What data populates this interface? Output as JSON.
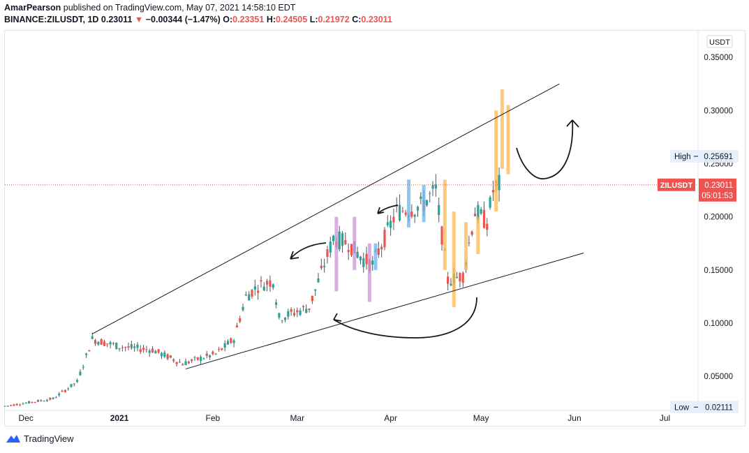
{
  "header": {
    "author": "AmarPearson",
    "published_text": "published on TradingView.com, May 07, 2021 14:58:10 EDT",
    "symbol": "BINANCE:ZILUSDT, 1D",
    "last": "0.23011",
    "change_arrow": "▼",
    "change": "−0.00344 (−1.47%)",
    "o_label": "O:",
    "o": "0.23351",
    "h_label": "H:",
    "h": "0.24505",
    "l_label": "L:",
    "l": "0.21972",
    "c_label": "C:",
    "c": "0.23011"
  },
  "footer": {
    "brand": "TradingView"
  },
  "colors": {
    "up": "#26a69a",
    "down": "#ef5350",
    "purple": "#ce93d8",
    "blue": "#64b5f6",
    "orange": "#ffb74d",
    "price_line": "#ef5350"
  },
  "chart_data": {
    "type": "candlestick",
    "currency_label": "USDT",
    "y_scale": "linear",
    "ylim": [
      0.018,
      0.375
    ],
    "yticks": [
      {
        "v": 0.35,
        "label": "0.35000"
      },
      {
        "v": 0.3,
        "label": "0.30000"
      },
      {
        "v": 0.25,
        "label": "0.25000"
      },
      {
        "v": 0.2,
        "label": "0.20000"
      },
      {
        "v": 0.15,
        "label": "0.15000"
      },
      {
        "v": 0.1,
        "label": "0.10000"
      },
      {
        "v": 0.05,
        "label": "0.05000"
      }
    ],
    "xticks": [
      {
        "label": "Dec",
        "date": "2020-12-01"
      },
      {
        "label": "2021",
        "date": "2021-01-01",
        "bold": true
      },
      {
        "label": "Feb",
        "date": "2021-02-01"
      },
      {
        "label": "Mar",
        "date": "2021-03-01"
      },
      {
        "label": "Apr",
        "date": "2021-04-01"
      },
      {
        "label": "May",
        "date": "2021-05-01"
      },
      {
        "label": "Jun",
        "date": "2021-06-01"
      },
      {
        "label": "Jul",
        "date": "2021-07-01"
      }
    ],
    "xlim_dates": [
      "2020-11-24",
      "2021-07-12"
    ],
    "high_marker": {
      "label": "High",
      "value": 0.25691,
      "text": "0.25691"
    },
    "low_marker": {
      "label": "Low",
      "value": 0.02111,
      "text": "0.02111"
    },
    "last_price": {
      "symbol": "ZILUSDT",
      "value": 0.23011,
      "text": "0.23011",
      "countdown": "05:01:53"
    },
    "trendlines": [
      {
        "from": {
          "date": "2020-12-23",
          "value": 0.09
        },
        "to": {
          "date": "2021-05-27",
          "value": 0.325
        }
      },
      {
        "from": {
          "date": "2021-01-23",
          "value": 0.057
        },
        "to": {
          "date": "2021-06-04",
          "value": 0.166
        }
      }
    ],
    "anchor_points": [
      {
        "date": "2020-11-24",
        "value": 0.022
      },
      {
        "date": "2020-12-01",
        "value": 0.025
      },
      {
        "date": "2020-12-10",
        "value": 0.029
      },
      {
        "date": "2020-12-18",
        "value": 0.045
      },
      {
        "date": "2020-12-23",
        "value": 0.085
      },
      {
        "date": "2021-01-01",
        "value": 0.078
      },
      {
        "date": "2021-01-12",
        "value": 0.075
      },
      {
        "date": "2021-01-22",
        "value": 0.062
      },
      {
        "date": "2021-02-02",
        "value": 0.071
      },
      {
        "date": "2021-02-08",
        "value": 0.085
      },
      {
        "date": "2021-02-12",
        "value": 0.125
      },
      {
        "date": "2021-02-16",
        "value": 0.135
      },
      {
        "date": "2021-02-21",
        "value": 0.14
      },
      {
        "date": "2021-02-23",
        "value": 0.105
      },
      {
        "date": "2021-03-05",
        "value": 0.115
      },
      {
        "date": "2021-03-13",
        "value": 0.18
      },
      {
        "date": "2021-03-18",
        "value": 0.175
      },
      {
        "date": "2021-03-23",
        "value": 0.16
      },
      {
        "date": "2021-03-26",
        "value": 0.155
      },
      {
        "date": "2021-04-03",
        "value": 0.205
      },
      {
        "date": "2021-04-11",
        "value": 0.21
      },
      {
        "date": "2021-04-16",
        "value": 0.225
      },
      {
        "date": "2021-04-20",
        "value": 0.14
      },
      {
        "date": "2021-04-25",
        "value": 0.145
      },
      {
        "date": "2021-04-29",
        "value": 0.205
      },
      {
        "date": "2021-05-03",
        "value": 0.195
      },
      {
        "date": "2021-05-05",
        "value": 0.225
      },
      {
        "date": "2021-05-07",
        "value": 0.23
      }
    ],
    "ghost_bars": [
      {
        "date": "2021-03-14",
        "low": 0.13,
        "high": 0.2,
        "color": "purple"
      },
      {
        "date": "2021-03-20",
        "low": 0.15,
        "high": 0.2,
        "color": "purple"
      },
      {
        "date": "2021-03-25",
        "low": 0.12,
        "high": 0.175,
        "color": "purple"
      },
      {
        "date": "2021-03-27",
        "low": 0.15,
        "high": 0.175,
        "color": "blue"
      },
      {
        "date": "2021-04-07",
        "low": 0.19,
        "high": 0.235,
        "color": "blue"
      },
      {
        "date": "2021-04-12",
        "low": 0.195,
        "high": 0.23,
        "color": "blue"
      },
      {
        "date": "2021-04-19",
        "low": 0.15,
        "high": 0.235,
        "color": "orange"
      },
      {
        "date": "2021-04-22",
        "low": 0.115,
        "high": 0.205,
        "color": "orange"
      },
      {
        "date": "2021-04-26",
        "low": 0.15,
        "high": 0.195,
        "color": "orange"
      },
      {
        "date": "2021-04-30",
        "low": 0.165,
        "high": 0.2,
        "color": "orange"
      },
      {
        "date": "2021-05-06",
        "low": 0.205,
        "high": 0.3,
        "color": "orange"
      },
      {
        "date": "2021-05-08",
        "low": 0.245,
        "high": 0.32,
        "color": "orange"
      },
      {
        "date": "2021-05-10",
        "low": 0.24,
        "high": 0.305,
        "color": "orange"
      }
    ]
  }
}
